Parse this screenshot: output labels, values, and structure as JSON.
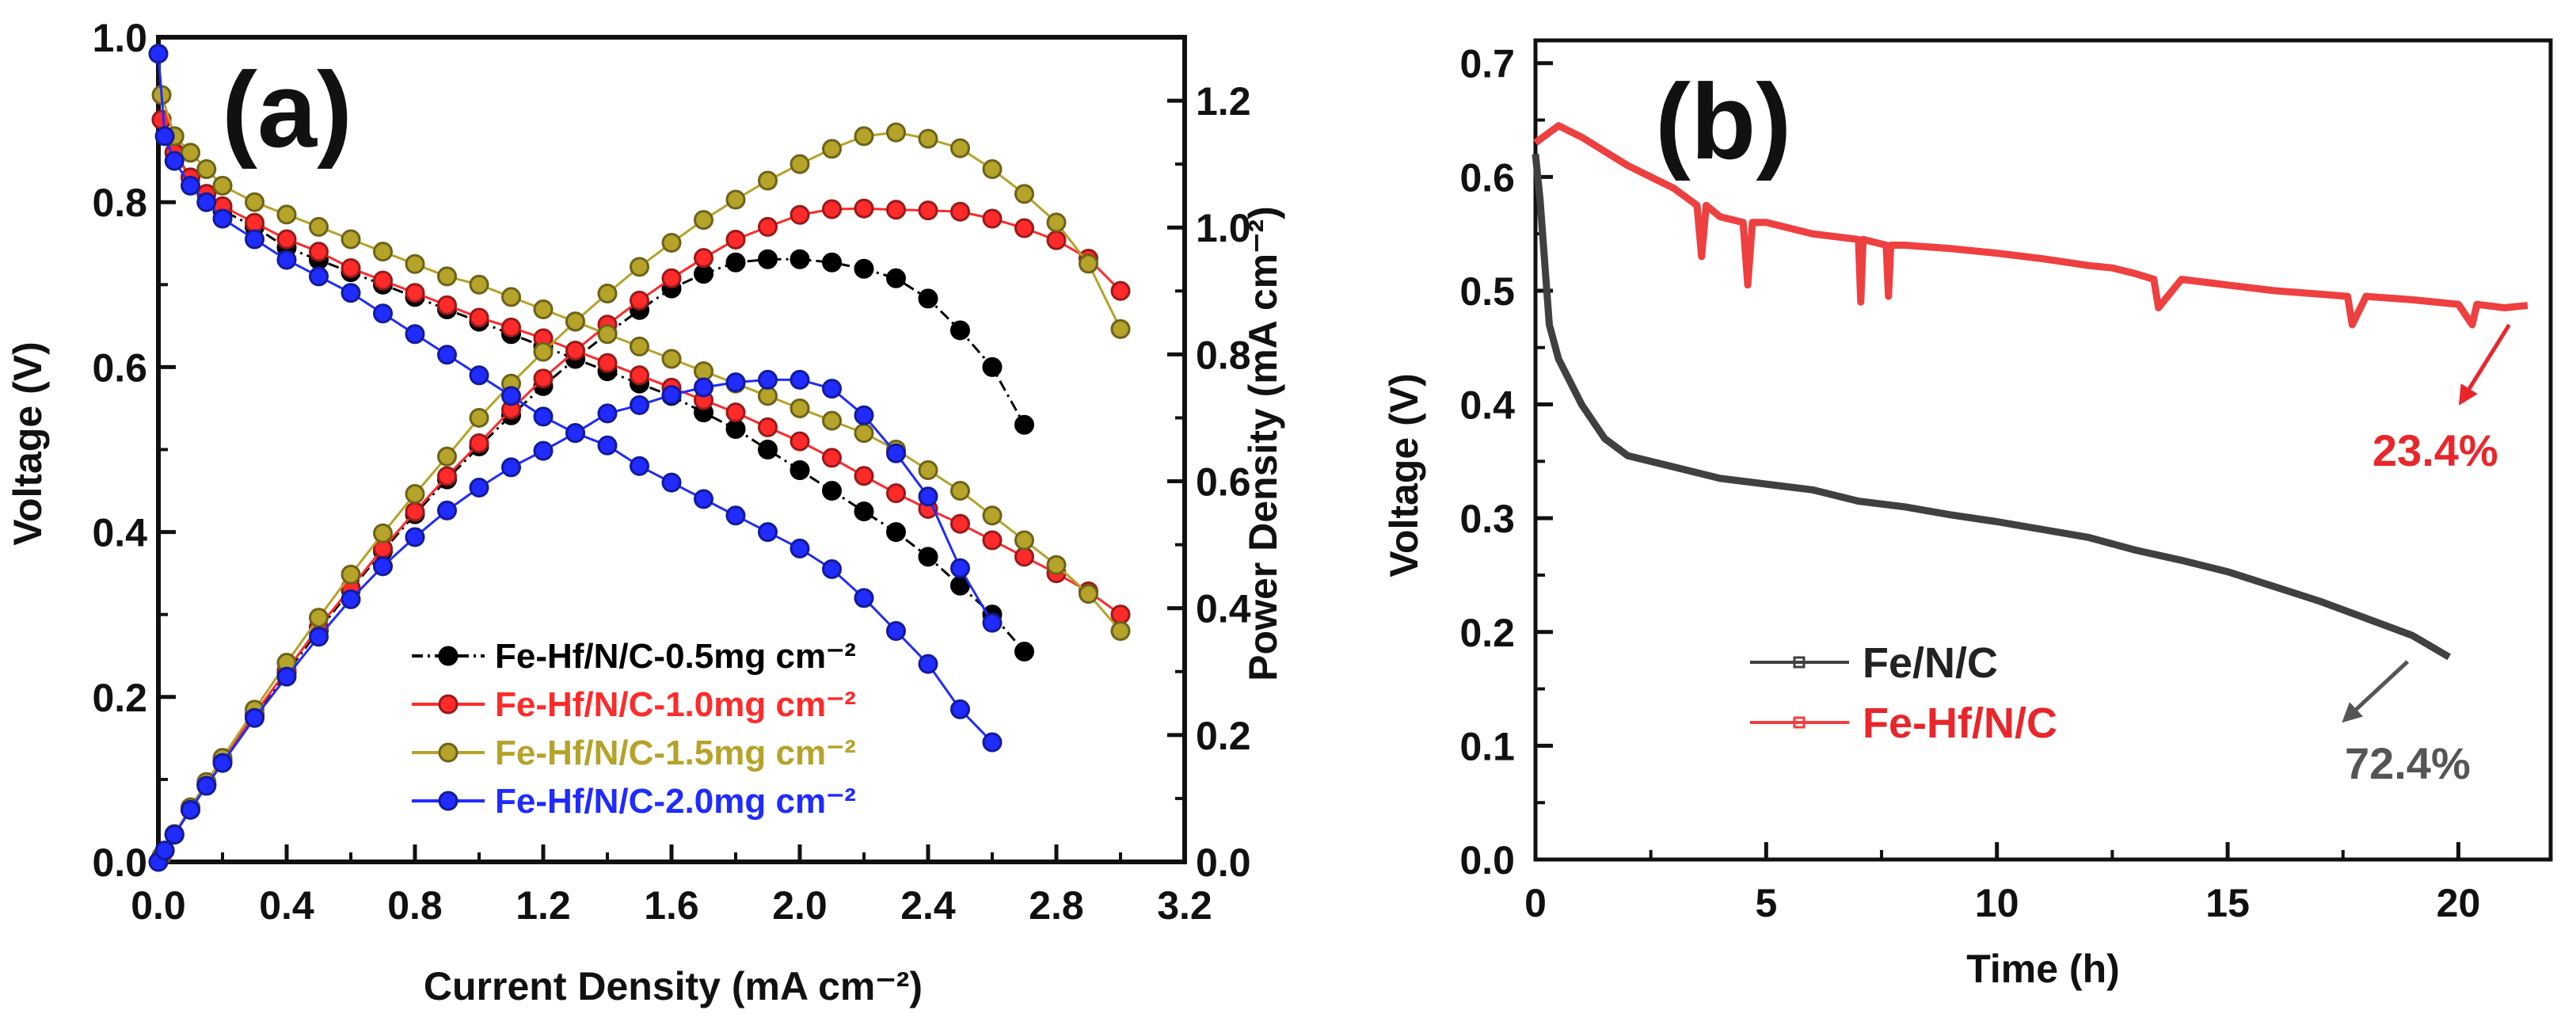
{
  "chart_data": [
    {
      "type": "line",
      "panel_label": "(a)",
      "xlabel": "Current Density (mA cm⁻²)",
      "ylabel": "Voltage (V)",
      "y2label": "Power Density (mA cm⁻²)",
      "xlim": [
        0,
        3.2
      ],
      "ylim": [
        0,
        1.0
      ],
      "y2lim": [
        0,
        1.3
      ],
      "xticks": [
        "0.0",
        "0.4",
        "0.8",
        "1.2",
        "1.6",
        "2.0",
        "2.4",
        "2.8",
        "3.2"
      ],
      "yticks": [
        "0.0",
        "0.2",
        "0.4",
        "0.6",
        "0.8",
        "1.0"
      ],
      "y2ticks": [
        "0.0",
        "0.2",
        "0.4",
        "0.6",
        "0.8",
        "1.0",
        "1.2"
      ],
      "legend_position": "bottom-center",
      "series": [
        {
          "name": "Fe-Hf/N/C-0.5mg cm⁻²",
          "color": "#000000",
          "dash": true,
          "x": [
            0.01,
            0.05,
            0.1,
            0.15,
            0.2,
            0.3,
            0.4,
            0.5,
            0.6,
            0.7,
            0.8,
            0.9,
            1.0,
            1.1,
            1.2,
            1.3,
            1.4,
            1.5,
            1.6,
            1.7,
            1.8,
            1.9,
            2.0,
            2.1,
            2.2,
            2.3,
            2.4,
            2.5,
            2.6,
            2.7
          ],
          "voltage": [
            0.9,
            0.86,
            0.83,
            0.81,
            0.79,
            0.77,
            0.745,
            0.73,
            0.715,
            0.7,
            0.685,
            0.67,
            0.655,
            0.64,
            0.625,
            0.61,
            0.595,
            0.58,
            0.565,
            0.545,
            0.525,
            0.5,
            0.475,
            0.45,
            0.425,
            0.4,
            0.37,
            0.335,
            0.3,
            0.255
          ],
          "power": [
            0.009,
            0.043,
            0.083,
            0.122,
            0.158,
            0.231,
            0.298,
            0.365,
            0.429,
            0.49,
            0.548,
            0.603,
            0.655,
            0.704,
            0.75,
            0.793,
            0.833,
            0.87,
            0.904,
            0.927,
            0.945,
            0.95,
            0.95,
            0.945,
            0.935,
            0.92,
            0.888,
            0.838,
            0.78,
            0.689
          ]
        },
        {
          "name": "Fe-Hf/N/C-1.0mg cm⁻²",
          "color": "#ff2a2a",
          "dash": false,
          "x": [
            0.01,
            0.05,
            0.1,
            0.15,
            0.2,
            0.3,
            0.4,
            0.5,
            0.6,
            0.7,
            0.8,
            0.9,
            1.0,
            1.1,
            1.2,
            1.3,
            1.4,
            1.5,
            1.6,
            1.7,
            1.8,
            1.9,
            2.0,
            2.1,
            2.2,
            2.3,
            2.4,
            2.5,
            2.6,
            2.7,
            2.8,
            2.9,
            3.0
          ],
          "voltage": [
            0.9,
            0.86,
            0.83,
            0.81,
            0.795,
            0.775,
            0.755,
            0.74,
            0.72,
            0.705,
            0.69,
            0.675,
            0.66,
            0.648,
            0.635,
            0.62,
            0.605,
            0.59,
            0.575,
            0.56,
            0.545,
            0.527,
            0.51,
            0.49,
            0.468,
            0.447,
            0.428,
            0.41,
            0.39,
            0.37,
            0.35,
            0.328,
            0.3
          ],
          "power": [
            0.009,
            0.043,
            0.083,
            0.122,
            0.159,
            0.233,
            0.302,
            0.37,
            0.432,
            0.494,
            0.552,
            0.608,
            0.66,
            0.713,
            0.762,
            0.806,
            0.847,
            0.885,
            0.92,
            0.952,
            0.981,
            1.001,
            1.02,
            1.029,
            1.03,
            1.028,
            1.027,
            1.025,
            1.014,
            0.999,
            0.98,
            0.951,
            0.9
          ]
        },
        {
          "name": "Fe-Hf/N/C-1.5mg cm⁻²",
          "color": "#b5a32a",
          "dash": false,
          "x": [
            0.01,
            0.05,
            0.1,
            0.15,
            0.2,
            0.3,
            0.4,
            0.5,
            0.6,
            0.7,
            0.8,
            0.9,
            1.0,
            1.1,
            1.2,
            1.3,
            1.4,
            1.5,
            1.6,
            1.7,
            1.8,
            1.9,
            2.0,
            2.1,
            2.2,
            2.3,
            2.4,
            2.5,
            2.6,
            2.7,
            2.8,
            2.9,
            3.0
          ],
          "voltage": [
            0.93,
            0.88,
            0.86,
            0.84,
            0.82,
            0.8,
            0.785,
            0.77,
            0.755,
            0.74,
            0.725,
            0.71,
            0.7,
            0.685,
            0.67,
            0.655,
            0.64,
            0.625,
            0.61,
            0.595,
            0.58,
            0.565,
            0.55,
            0.535,
            0.52,
            0.5,
            0.475,
            0.45,
            0.42,
            0.39,
            0.36,
            0.325,
            0.28
          ],
          "power": [
            0.009,
            0.044,
            0.086,
            0.126,
            0.164,
            0.24,
            0.314,
            0.385,
            0.453,
            0.518,
            0.58,
            0.639,
            0.7,
            0.754,
            0.804,
            0.852,
            0.896,
            0.938,
            0.976,
            1.012,
            1.044,
            1.074,
            1.1,
            1.124,
            1.144,
            1.15,
            1.14,
            1.125,
            1.092,
            1.053,
            1.008,
            0.943,
            0.84
          ]
        },
        {
          "name": "Fe-Hf/N/C-2.0mg cm⁻²",
          "color": "#1f2bff",
          "dash": false,
          "x": [
            0,
            0.02,
            0.05,
            0.1,
            0.15,
            0.2,
            0.3,
            0.4,
            0.5,
            0.6,
            0.7,
            0.8,
            0.9,
            1.0,
            1.1,
            1.2,
            1.3,
            1.4,
            1.5,
            1.6,
            1.7,
            1.8,
            1.9,
            2.0,
            2.1,
            2.2,
            2.3,
            2.4,
            2.5,
            2.6
          ],
          "voltage": [
            0.98,
            0.88,
            0.85,
            0.82,
            0.8,
            0.78,
            0.755,
            0.73,
            0.71,
            0.69,
            0.665,
            0.64,
            0.615,
            0.59,
            0.565,
            0.54,
            0.52,
            0.505,
            0.48,
            0.46,
            0.44,
            0.42,
            0.4,
            0.38,
            0.355,
            0.32,
            0.28,
            0.24,
            0.185,
            0.145
          ],
          "power": [
            0,
            0.018,
            0.043,
            0.082,
            0.12,
            0.156,
            0.227,
            0.292,
            0.355,
            0.414,
            0.466,
            0.512,
            0.554,
            0.59,
            0.622,
            0.648,
            0.676,
            0.707,
            0.72,
            0.736,
            0.748,
            0.756,
            0.76,
            0.76,
            0.746,
            0.704,
            0.644,
            0.576,
            0.463,
            0.377
          ]
        }
      ]
    },
    {
      "type": "line",
      "panel_label": "(b)",
      "xlabel": "Time (h)",
      "ylabel": "Voltage (V)",
      "xlim": [
        0,
        22
      ],
      "ylim": [
        0,
        0.72
      ],
      "xticks": [
        "0",
        "5",
        "10",
        "15",
        "20"
      ],
      "yticks": [
        "0.0",
        "0.1",
        "0.2",
        "0.3",
        "0.4",
        "0.5",
        "0.6",
        "0.7"
      ],
      "legend_position": "bottom-left",
      "series": [
        {
          "name": "Fe/N/C",
          "color": "#404040",
          "x": [
            0,
            0.1,
            0.3,
            0.5,
            1,
            1.5,
            2,
            3,
            4,
            5,
            6,
            7,
            8,
            9,
            10,
            11,
            12,
            13,
            14,
            15,
            16,
            17,
            18,
            19,
            19.8
          ],
          "y": [
            0.62,
            0.58,
            0.47,
            0.44,
            0.4,
            0.37,
            0.355,
            0.345,
            0.335,
            0.33,
            0.325,
            0.315,
            0.31,
            0.303,
            0.297,
            0.29,
            0.283,
            0.272,
            0.263,
            0.253,
            0.24,
            0.227,
            0.212,
            0.197,
            0.178
          ]
        },
        {
          "name": "Fe-Hf/N/C",
          "color": "#ee4040",
          "x": [
            0,
            0.5,
            1,
            2,
            3,
            3.5,
            3.6,
            3.7,
            4,
            4.5,
            4.6,
            4.7,
            5,
            6,
            7,
            7.05,
            7.1,
            7.6,
            7.65,
            7.7,
            8,
            9,
            10,
            11,
            12,
            12.5,
            13,
            13.4,
            13.5,
            14,
            15,
            16,
            17,
            17.6,
            17.7,
            18,
            19,
            20,
            20.3,
            20.4,
            21,
            21.5
          ],
          "y": [
            0.63,
            0.645,
            0.635,
            0.61,
            0.59,
            0.575,
            0.53,
            0.575,
            0.565,
            0.56,
            0.505,
            0.56,
            0.56,
            0.55,
            0.545,
            0.49,
            0.545,
            0.54,
            0.495,
            0.54,
            0.54,
            0.537,
            0.533,
            0.528,
            0.522,
            0.52,
            0.515,
            0.51,
            0.485,
            0.51,
            0.505,
            0.5,
            0.497,
            0.495,
            0.47,
            0.495,
            0.492,
            0.488,
            0.47,
            0.488,
            0.485,
            0.487
          ]
        }
      ],
      "annotations": [
        {
          "text": "23.4%",
          "color": "#e8262b",
          "arrow_from": [
            21.1,
            0.47
          ],
          "arrow_to": [
            20.1,
            0.405
          ],
          "at": [
            19.5,
            0.36
          ]
        },
        {
          "text": "72.4%",
          "color": "#555555",
          "arrow_from": [
            18.9,
            0.174
          ],
          "arrow_to": [
            17.6,
            0.125
          ],
          "at": [
            18.9,
            0.085
          ]
        }
      ]
    }
  ]
}
